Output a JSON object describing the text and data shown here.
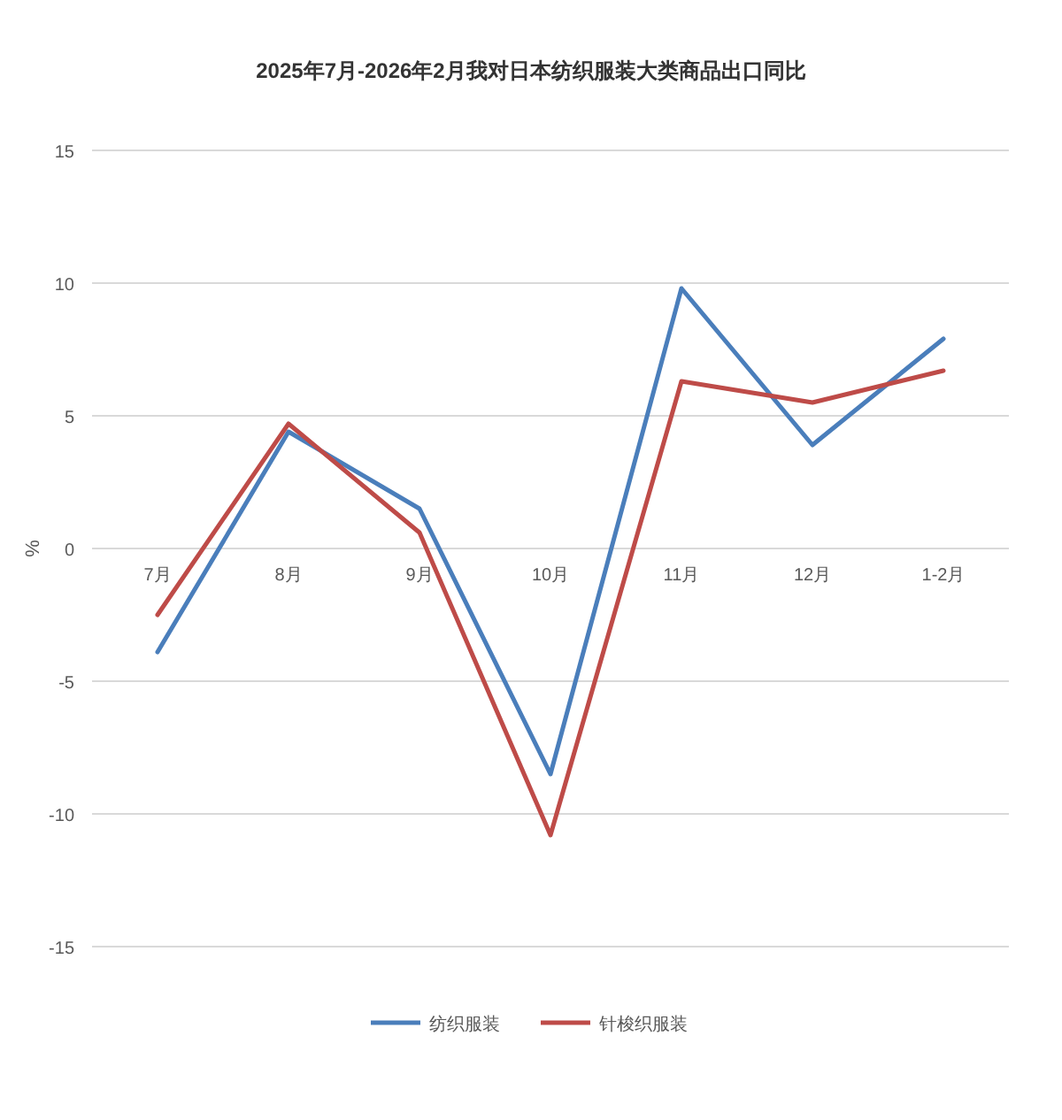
{
  "chart_data": {
    "type": "line",
    "title": "2025年7月-2026年2月我对日本纺织服装大类商品出口同比",
    "ylabel": "%",
    "categories": [
      "7月",
      "8月",
      "9月",
      "10月",
      "11月",
      "12月",
      "1-2月"
    ],
    "series": [
      {
        "name": "纺织服装",
        "color": "#4a7ebb",
        "values": [
          -3.9,
          4.4,
          1.5,
          -8.5,
          9.8,
          3.9,
          7.9
        ]
      },
      {
        "name": "针梭织服装",
        "color": "#be4b48",
        "values": [
          -2.5,
          4.7,
          0.6,
          -10.8,
          6.3,
          5.5,
          6.7
        ]
      }
    ],
    "ylim": [
      -15,
      15
    ],
    "yticks": [
      -15,
      -10,
      -5,
      0,
      5,
      10,
      15
    ],
    "grid": "y",
    "legend": "bottom"
  }
}
